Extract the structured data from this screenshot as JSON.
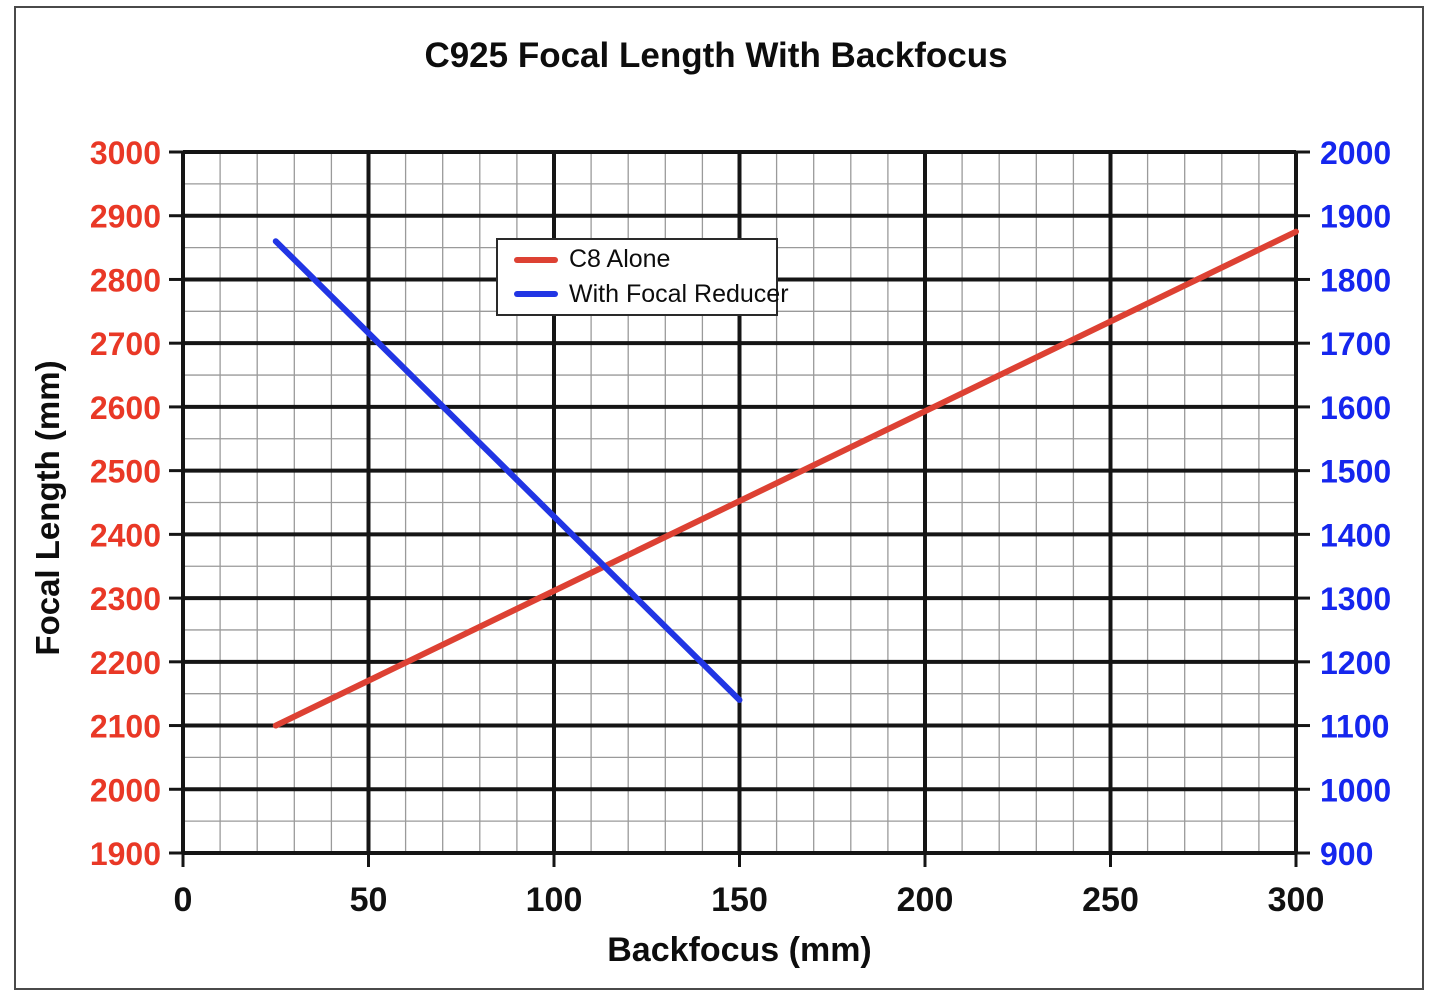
{
  "window": {
    "background": "#ffffff",
    "frame_border_color": "#4a4a4a"
  },
  "chart_data": {
    "type": "line",
    "title": "C925 Focal Length With Backfocus",
    "xlabel": "Backfocus (mm)",
    "ylabel_left": "Focal Length (mm)",
    "x_axis": {
      "min": 0,
      "max": 300,
      "major_step": 50,
      "minor_step": 10,
      "ticks": [
        0,
        50,
        100,
        150,
        200,
        250,
        300
      ],
      "label_color": "#111111"
    },
    "y_axis_left": {
      "min": 1900,
      "max": 3000,
      "major_step": 100,
      "minor_step": 50,
      "ticks": [
        3000,
        2900,
        2800,
        2700,
        2600,
        2500,
        2400,
        2300,
        2200,
        2100,
        2000,
        1900
      ],
      "label_color": "#e93826"
    },
    "y_axis_right": {
      "min": 900,
      "max": 2000,
      "major_step": 100,
      "ticks": [
        2000,
        1900,
        1800,
        1700,
        1600,
        1500,
        1400,
        1300,
        1200,
        1100,
        1000,
        900
      ],
      "label_color": "#1526ee"
    },
    "grid": {
      "major_color": "#151515",
      "minor_color": "#9a9a9a",
      "major_width": 4,
      "minor_width": 1.3,
      "axis_width": 4,
      "tick_width": 3
    },
    "series": [
      {
        "name": "C8 Alone",
        "axis": "left",
        "color": "#dd4133",
        "line_width": 6,
        "x": [
          25,
          300
        ],
        "y": [
          2100,
          2875
        ]
      },
      {
        "name": "With Focal Reducer",
        "axis": "right",
        "color": "#2135e4",
        "line_width": 6,
        "x": [
          25,
          150
        ],
        "y": [
          1860,
          1140
        ]
      }
    ],
    "legend": {
      "position": "top-center",
      "entries": [
        "C8 Alone",
        "With Focal Reducer"
      ]
    }
  }
}
